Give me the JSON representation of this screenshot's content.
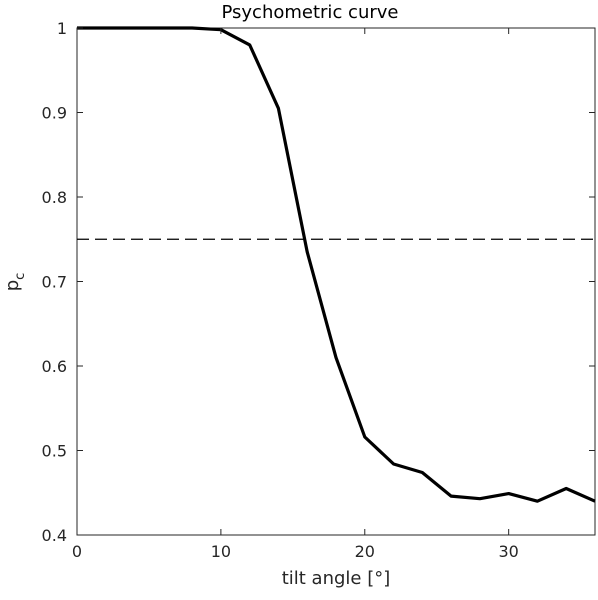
{
  "chart_data": {
    "type": "line",
    "title": "Psychometric curve",
    "xlabel": "tilt angle [°]",
    "ylabel": "p",
    "ylabel_subscript": "c",
    "xlim": [
      0,
      36
    ],
    "ylim": [
      0.4,
      1.0
    ],
    "xticks": [
      0,
      10,
      20,
      30
    ],
    "xtick_labels": [
      "0",
      "10",
      "20",
      "30"
    ],
    "yticks": [
      0.4,
      0.5,
      0.6,
      0.7,
      0.8,
      0.9,
      1.0
    ],
    "ytick_labels": [
      "0.4",
      "0.5",
      "0.6",
      "0.7",
      "0.8",
      "0.9",
      "1"
    ],
    "grid": false,
    "series": [
      {
        "x": [
          0,
          2,
          4,
          6,
          8,
          10,
          12,
          14,
          16,
          18,
          20,
          22,
          24,
          26,
          28,
          30,
          32,
          34,
          36
        ],
        "y": [
          1.0,
          1.0,
          1.0,
          1.0,
          1.0,
          0.998,
          0.98,
          0.905,
          0.735,
          0.61,
          0.516,
          0.484,
          0.474,
          0.446,
          0.443,
          0.449,
          0.44,
          0.455,
          0.44
        ],
        "color": "#000000",
        "style": "solid"
      }
    ],
    "reference_line": {
      "y": 0.75,
      "style": "dashed",
      "color": "#000000"
    }
  }
}
